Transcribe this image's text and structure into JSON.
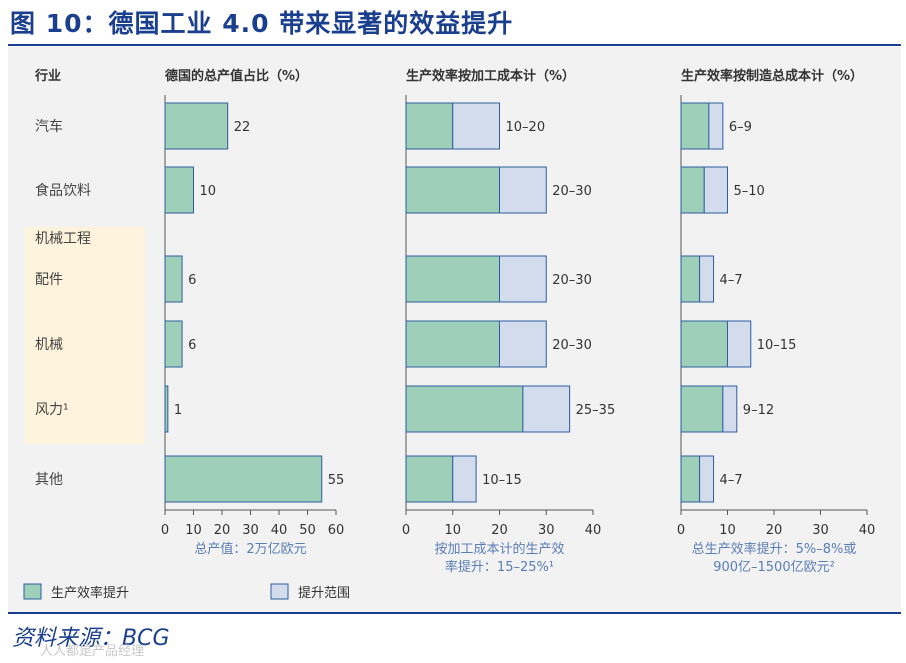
{
  "title": "图 10：德国工业 4.0 带来显著的效益提升",
  "source": "资料来源：BCG",
  "watermark": "人人都是产品经理",
  "colors": {
    "improve": "#9ecfb9",
    "range": "#d2dced",
    "border": "#2e5e9e",
    "highlight": "#fdf2dc",
    "title": "#1a3f8f"
  },
  "legend": [
    {
      "label": "生产效率提升",
      "color": "#9ecfb9"
    },
    {
      "label": "提升范围",
      "color": "#d2dced"
    }
  ],
  "row_header": "行业",
  "chart_data": [
    {
      "type": "bar",
      "orientation": "horizontal",
      "title": "德国的总产值占比（%）",
      "categories_header": "行业",
      "categories": [
        "汽车",
        "食品饮料",
        "机械工程",
        "配件",
        "机械",
        "风力¹",
        "其他"
      ],
      "values": [
        22,
        10,
        null,
        6,
        6,
        1,
        55
      ],
      "value_labels": [
        "22",
        "10",
        "",
        "6",
        "6",
        "1",
        "55"
      ],
      "xlim": [
        0,
        60
      ],
      "xticks": [
        0,
        10,
        20,
        30,
        40,
        50,
        60
      ],
      "xlabel": "总产值：2万亿欧元"
    },
    {
      "type": "bar",
      "orientation": "horizontal",
      "stacked": true,
      "title": "生产效率按加工成本计（%）",
      "categories": [
        "汽车",
        "食品饮料",
        "机械工程",
        "配件",
        "机械",
        "风力¹",
        "其他"
      ],
      "series": [
        {
          "name": "生产效率提升",
          "values": [
            10,
            20,
            null,
            20,
            20,
            25,
            10
          ]
        },
        {
          "name": "提升范围",
          "values": [
            10,
            10,
            null,
            10,
            10,
            10,
            5
          ]
        }
      ],
      "value_labels": [
        "10–20",
        "20–30",
        "",
        "20–30",
        "20–30",
        "25–35",
        "10–15"
      ],
      "xlim": [
        0,
        40
      ],
      "xticks": [
        0,
        10,
        20,
        30,
        40
      ],
      "xlabel": [
        "按加工成本计的生产效",
        "率提升：15–25%¹"
      ]
    },
    {
      "type": "bar",
      "orientation": "horizontal",
      "stacked": true,
      "title": "生产效率按制造总成本计（%）",
      "categories": [
        "汽车",
        "食品饮料",
        "机械工程",
        "配件",
        "机械",
        "风力¹",
        "其他"
      ],
      "series": [
        {
          "name": "生产效率提升",
          "values": [
            6,
            5,
            null,
            4,
            10,
            9,
            4
          ]
        },
        {
          "name": "提升范围",
          "values": [
            3,
            5,
            null,
            3,
            5,
            3,
            3
          ]
        }
      ],
      "value_labels": [
        "6–9",
        "5–10",
        "",
        "4–7",
        "10–15",
        "9–12",
        "4–7"
      ],
      "xlim": [
        0,
        40
      ],
      "xticks": [
        0,
        10,
        20,
        30,
        40
      ],
      "xlabel": [
        "总生产效率提升：5%–8%或",
        "900亿–1500亿欧元²"
      ]
    }
  ]
}
